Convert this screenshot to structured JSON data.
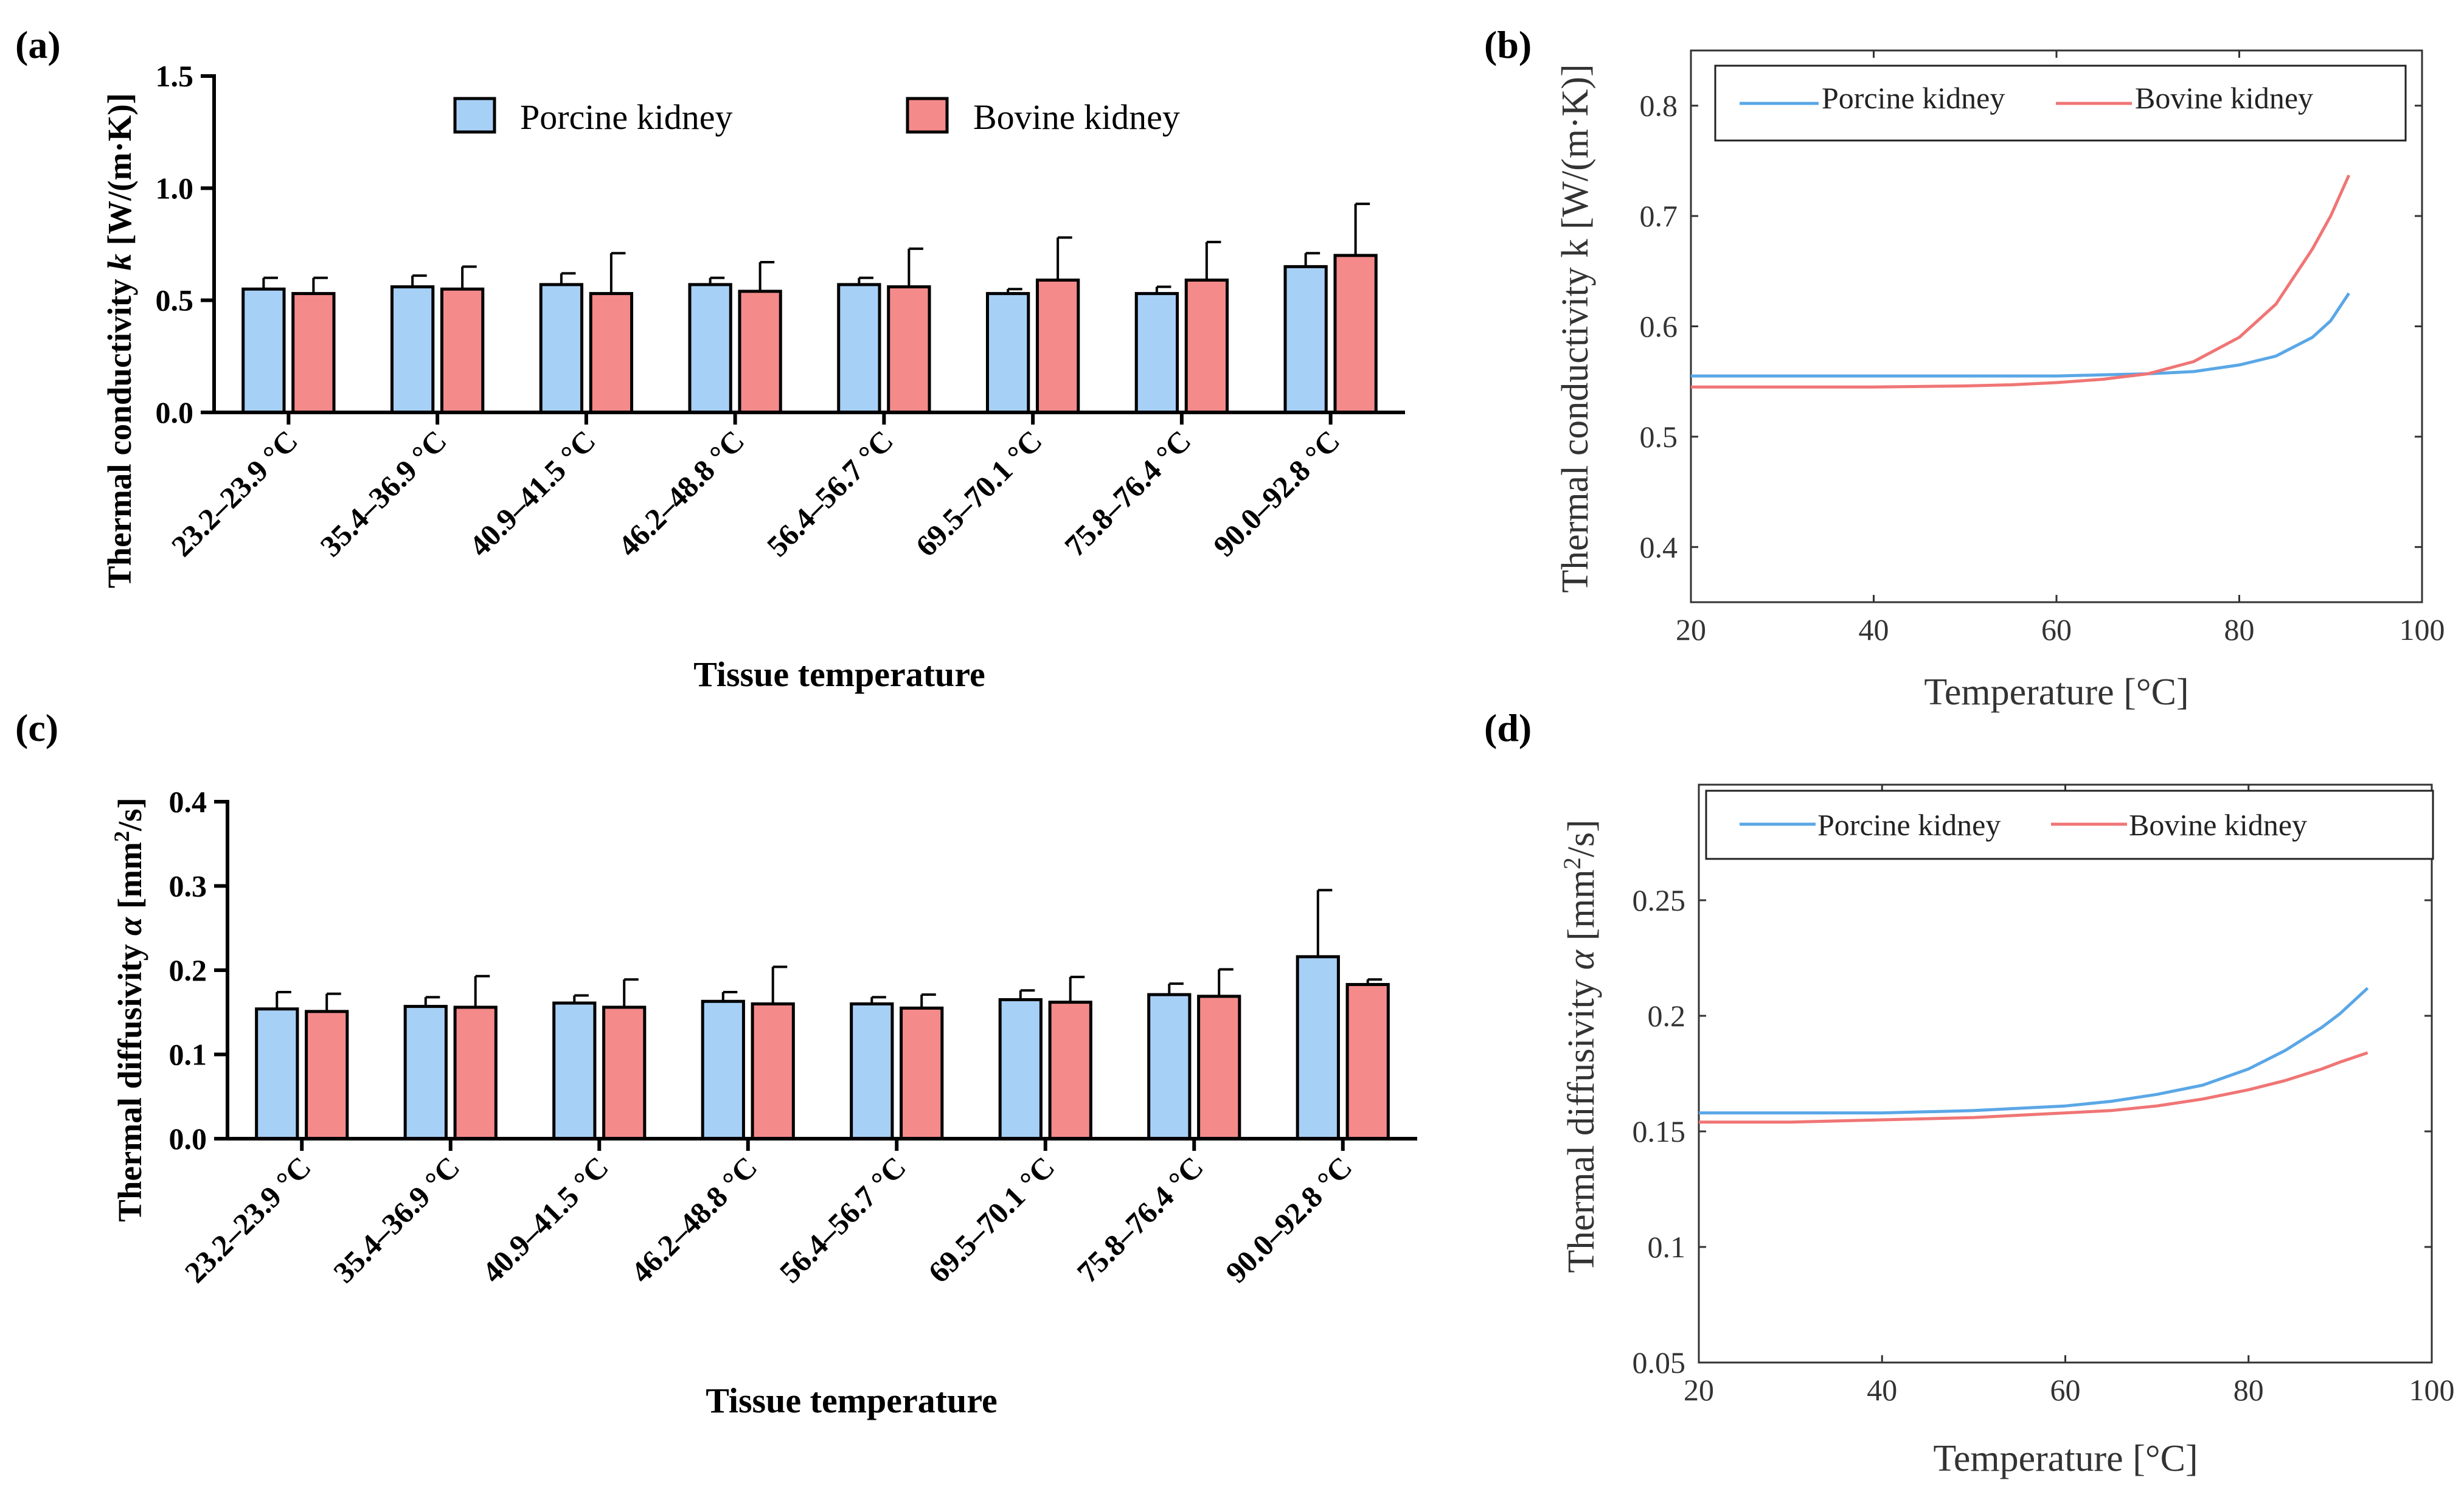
{
  "panels": [
    {
      "label": "(a)",
      "chart_data": {
        "type": "bar",
        "categories": [
          "23.2–23.9 °C",
          "35.4–36.9 °C",
          "40.9–41.5 °C",
          "46.2–48.8 °C",
          "56.4–56.7 °C",
          "69.5–70.1 °C",
          "75.8–76.4 °C",
          "90.0–92.8 °C"
        ],
        "series": [
          {
            "name": "Porcine kidney",
            "color": "#a7d0f7",
            "values": [
              0.55,
              0.56,
              0.57,
              0.57,
              0.57,
              0.53,
              0.53,
              0.65
            ],
            "errors": [
              0.05,
              0.05,
              0.05,
              0.03,
              0.03,
              0.02,
              0.03,
              0.06
            ]
          },
          {
            "name": "Bovine kidney",
            "color": "#f58a8a",
            "values": [
              0.53,
              0.55,
              0.53,
              0.54,
              0.56,
              0.59,
              0.59,
              0.7
            ],
            "errors": [
              0.07,
              0.1,
              0.18,
              0.13,
              0.17,
              0.19,
              0.17,
              0.23
            ]
          }
        ],
        "xlabel": "Tissue temperature",
        "ylabel_prefix": "Thermal conductivity ",
        "ylabel_symbol": "k",
        "ylabel_suffix": " [W/(m·K)]",
        "ylim": [
          0,
          1.5
        ],
        "yticks": [
          "0.0",
          "0.5",
          "1.0",
          "1.5"
        ],
        "legend_position": "top"
      }
    },
    {
      "label": "(b)",
      "chart_data": {
        "type": "line",
        "series": [
          {
            "name": "Porcine kidney",
            "color": "#5aa7e6",
            "x": [
              20,
              30,
              40,
              50,
              60,
              65,
              70,
              75,
              80,
              84,
              88,
              90,
              92
            ],
            "y": [
              0.555,
              0.555,
              0.555,
              0.555,
              0.555,
              0.556,
              0.557,
              0.559,
              0.565,
              0.573,
              0.59,
              0.605,
              0.63
            ]
          },
          {
            "name": "Bovine kidney",
            "color": "#f07575",
            "x": [
              20,
              30,
              40,
              50,
              55,
              60,
              65,
              70,
              75,
              80,
              84,
              88,
              90,
              92
            ],
            "y": [
              0.545,
              0.545,
              0.545,
              0.546,
              0.547,
              0.549,
              0.552,
              0.557,
              0.568,
              0.59,
              0.62,
              0.67,
              0.7,
              0.737
            ]
          }
        ],
        "xlabel": "Temperature [°C]",
        "ylabel": "Thermal conductivity k [W/(m·K)]",
        "xlim": [
          20,
          100
        ],
        "ylim": [
          0.35,
          0.85
        ],
        "xticks": [
          "20",
          "40",
          "60",
          "80",
          "100"
        ],
        "yticks": [
          "0.4",
          "0.5",
          "0.6",
          "0.7",
          "0.8"
        ],
        "legend_position": "top"
      }
    },
    {
      "label": "(c)",
      "chart_data": {
        "type": "bar",
        "categories": [
          "23.2–23.9 °C",
          "35.4–36.9 °C",
          "40.9–41.5 °C",
          "46.2–48.8 °C",
          "56.4–56.7 °C",
          "69.5–70.1 °C",
          "75.8–76.4 °C",
          "90.0–92.8 °C"
        ],
        "series": [
          {
            "name": "Porcine kidney",
            "color": "#a7d0f7",
            "values": [
              0.154,
              0.157,
              0.161,
              0.163,
              0.16,
              0.165,
              0.171,
              0.216
            ],
            "errors": [
              0.02,
              0.011,
              0.009,
              0.011,
              0.008,
              0.011,
              0.013,
              0.079
            ]
          },
          {
            "name": "Bovine kidney",
            "color": "#f58a8a",
            "values": [
              0.151,
              0.156,
              0.156,
              0.16,
              0.155,
              0.162,
              0.169,
              0.183
            ],
            "errors": [
              0.021,
              0.037,
              0.033,
              0.044,
              0.016,
              0.03,
              0.032,
              0.006
            ]
          }
        ],
        "xlabel": "Tissue temperature",
        "ylabel_prefix": "Thermal diffusivity ",
        "ylabel_symbol": "α",
        "ylabel_suffix": " [mm",
        "ylabel_sup": "2",
        "ylabel_end": "/s]",
        "ylim": [
          0,
          0.4
        ],
        "yticks": [
          "0.0",
          "0.1",
          "0.2",
          "0.3",
          "0.4"
        ]
      }
    },
    {
      "label": "(d)",
      "chart_data": {
        "type": "line",
        "series": [
          {
            "name": "Porcine kidney",
            "color": "#5aa7e6",
            "x": [
              20,
              30,
              40,
              50,
              55,
              60,
              65,
              70,
              75,
              80,
              84,
              88,
              90,
              93
            ],
            "y": [
              0.158,
              0.158,
              0.158,
              0.159,
              0.16,
              0.161,
              0.163,
              0.166,
              0.17,
              0.177,
              0.185,
              0.195,
              0.201,
              0.212
            ]
          },
          {
            "name": "Bovine kidney",
            "color": "#f07575",
            "x": [
              20,
              30,
              40,
              50,
              55,
              60,
              65,
              70,
              75,
              80,
              84,
              88,
              90,
              93
            ],
            "y": [
              0.154,
              0.154,
              0.155,
              0.156,
              0.157,
              0.158,
              0.159,
              0.161,
              0.164,
              0.168,
              0.172,
              0.177,
              0.18,
              0.184
            ]
          }
        ],
        "xlabel": "Temperature [°C]",
        "ylabel_prefix": "Thermal diffusivity ",
        "ylabel_symbol": "α",
        "ylabel_suffix": " [mm",
        "ylabel_sup": "2",
        "ylabel_end": "/s]",
        "xlim": [
          20,
          100
        ],
        "ylim": [
          0.05,
          0.3
        ],
        "xticks": [
          "20",
          "40",
          "60",
          "80",
          "100"
        ],
        "yticks": [
          "0.05",
          "0.1",
          "0.15",
          "0.2",
          "0.25"
        ],
        "legend_position": "top"
      }
    }
  ]
}
